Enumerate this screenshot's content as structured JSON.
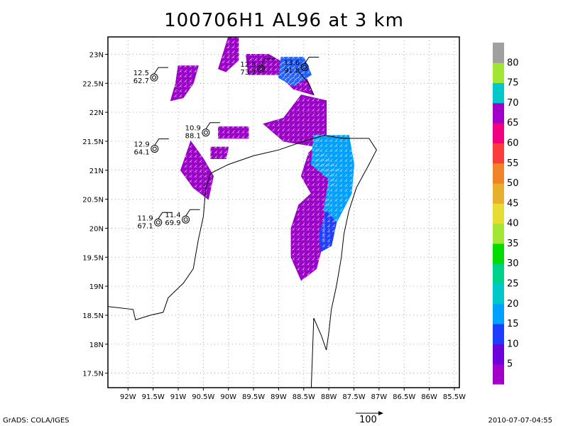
{
  "title": "100706H1 AL96 at 3 km",
  "colors": {
    "bg": "#ffffff",
    "frame": "#000000",
    "grid": "#9a9a9a",
    "coast": "#000000",
    "barb": "#ffffff"
  },
  "chart_data": {
    "type": "heatmap",
    "title": "100706H1 AL96 at 3 km",
    "x_range_lon": [
      -92.4,
      -85.4
    ],
    "y_range_lat": [
      17.25,
      23.3
    ],
    "lon_ticks": [
      "92W",
      "91.5W",
      "91W",
      "90.5W",
      "90W",
      "89.5W",
      "89W",
      "88.5W",
      "88W",
      "87.5W",
      "87W",
      "86.5W",
      "86W",
      "85.5W"
    ],
    "lon_values": [
      -92,
      -91.5,
      -91,
      -90.5,
      -90,
      -89.5,
      -89,
      -88.5,
      -88,
      -87.5,
      -87,
      -86.5,
      -86,
      -85.5
    ],
    "lat_ticks": [
      "17.5N",
      "18N",
      "18.5N",
      "19N",
      "19.5N",
      "20N",
      "20.5N",
      "21N",
      "21.5N",
      "22N",
      "22.5N",
      "23N"
    ],
    "lat_values": [
      17.5,
      18,
      18.5,
      19,
      19.5,
      20,
      20.5,
      21,
      21.5,
      22,
      22.5,
      23
    ],
    "colorbar": {
      "labels": [
        "5",
        "10",
        "15",
        "20",
        "25",
        "30",
        "35",
        "40",
        "45",
        "50",
        "55",
        "60",
        "65",
        "70",
        "75",
        "80"
      ],
      "colors": [
        "#a000c8",
        "#6e00dc",
        "#1e3cff",
        "#00a0ff",
        "#00c8c8",
        "#00d28c",
        "#00dc00",
        "#a0e632",
        "#e6dc32",
        "#e6af2d",
        "#f08228",
        "#fa3c3c",
        "#f00082",
        "#a000c8",
        "#00c8c8",
        "#a0e632",
        "#a0a0a0"
      ]
    },
    "stations": [
      {
        "lon": -91.48,
        "lat": 22.6,
        "speed": "12.5",
        "pressure": "62.7"
      },
      {
        "lon": -89.35,
        "lat": 22.75,
        "speed": "12.5",
        "pressure": "73.7"
      },
      {
        "lon": -88.48,
        "lat": 22.78,
        "speed": "13.6",
        "pressure": "91.8"
      },
      {
        "lon": -90.45,
        "lat": 21.65,
        "speed": "10.9",
        "pressure": "88.1"
      },
      {
        "lon": -91.47,
        "lat": 21.37,
        "speed": "12.9",
        "pressure": "64.1"
      },
      {
        "lon": -91.4,
        "lat": 20.1,
        "speed": "11.9",
        "pressure": "67.1"
      },
      {
        "lon": -90.85,
        "lat": 20.15,
        "speed": "11.4",
        "pressure": "69.9"
      }
    ],
    "shaded_regions": [
      {
        "level": "5-10",
        "color": "#9a00c8",
        "polygon_lonlat": [
          [
            -91.0,
            22.8
          ],
          [
            -90.6,
            22.8
          ],
          [
            -90.7,
            22.5
          ],
          [
            -90.9,
            22.25
          ],
          [
            -91.15,
            22.2
          ],
          [
            -91.05,
            22.5
          ]
        ]
      },
      {
        "level": "5-10",
        "color": "#9a00c8",
        "polygon_lonlat": [
          [
            -90.0,
            23.3
          ],
          [
            -89.8,
            23.3
          ],
          [
            -89.8,
            22.9
          ],
          [
            -90.05,
            22.7
          ],
          [
            -90.2,
            22.75
          ]
        ]
      },
      {
        "level": "5-10",
        "color": "#9a00c8",
        "polygon_lonlat": [
          [
            -89.65,
            23.0
          ],
          [
            -89.2,
            23.0
          ],
          [
            -88.9,
            22.85
          ],
          [
            -88.5,
            22.7
          ],
          [
            -88.3,
            22.3
          ],
          [
            -88.7,
            22.4
          ],
          [
            -89.0,
            22.65
          ],
          [
            -89.6,
            22.65
          ]
        ]
      },
      {
        "level": "5-10",
        "color": "#9a00c8",
        "polygon_lonlat": [
          [
            -90.75,
            21.5
          ],
          [
            -90.5,
            21.2
          ],
          [
            -90.3,
            20.9
          ],
          [
            -90.4,
            20.5
          ],
          [
            -90.7,
            20.7
          ],
          [
            -90.95,
            21.0
          ]
        ]
      },
      {
        "level": "5-10",
        "color": "#9a00c8",
        "polygon_lonlat": [
          [
            -90.2,
            21.75
          ],
          [
            -89.6,
            21.75
          ],
          [
            -89.6,
            21.55
          ],
          [
            -90.2,
            21.55
          ]
        ]
      },
      {
        "level": "5-10",
        "color": "#9a00c8",
        "polygon_lonlat": [
          [
            -90.35,
            21.4
          ],
          [
            -90.0,
            21.4
          ],
          [
            -90.05,
            21.2
          ],
          [
            -90.35,
            21.2
          ]
        ]
      },
      {
        "level": "5-10",
        "color": "#9a00c8",
        "polygon_lonlat": [
          [
            -88.55,
            22.3
          ],
          [
            -88.05,
            22.2
          ],
          [
            -88.05,
            21.6
          ],
          [
            -88.4,
            21.3
          ],
          [
            -88.55,
            20.9
          ],
          [
            -88.35,
            20.6
          ],
          [
            -88.6,
            20.4
          ],
          [
            -88.75,
            20.0
          ],
          [
            -88.75,
            19.5
          ],
          [
            -88.55,
            19.1
          ],
          [
            -88.25,
            19.3
          ],
          [
            -88.1,
            19.8
          ],
          [
            -88.0,
            20.5
          ],
          [
            -87.8,
            21.0
          ],
          [
            -88.2,
            21.4
          ],
          [
            -88.9,
            21.5
          ],
          [
            -89.3,
            21.8
          ],
          [
            -88.9,
            21.9
          ]
        ]
      },
      {
        "level": "10-20",
        "color": "#2060ff",
        "polygon_lonlat": [
          [
            -88.95,
            22.95
          ],
          [
            -88.5,
            22.95
          ],
          [
            -88.35,
            22.65
          ],
          [
            -88.7,
            22.45
          ],
          [
            -89.0,
            22.6
          ]
        ]
      },
      {
        "level": "15-20",
        "color": "#00a0ff",
        "polygon_lonlat": [
          [
            -88.3,
            21.6
          ],
          [
            -87.6,
            21.6
          ],
          [
            -87.5,
            21.1
          ],
          [
            -87.55,
            20.6
          ],
          [
            -87.85,
            20.1
          ],
          [
            -88.1,
            20.3
          ],
          [
            -88.0,
            20.85
          ],
          [
            -88.35,
            21.1
          ]
        ]
      },
      {
        "level": "10-15",
        "color": "#2040ff",
        "polygon_lonlat": [
          [
            -88.05,
            20.3
          ],
          [
            -87.85,
            20.1
          ],
          [
            -87.95,
            19.7
          ],
          [
            -88.15,
            19.6
          ],
          [
            -88.2,
            19.9
          ]
        ]
      }
    ]
  },
  "footer": {
    "left": "GrADS: COLA/IGES",
    "right": "2010-07-07-04:55",
    "vector_label": "100"
  }
}
